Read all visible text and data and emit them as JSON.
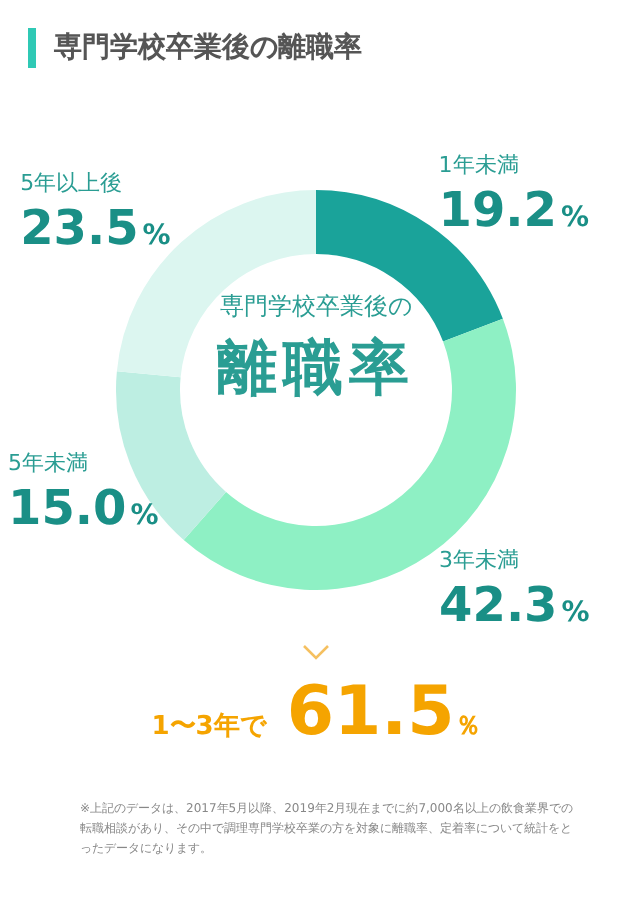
{
  "chart_data": {
    "type": "donut",
    "title": "専門学校卒業後の離職率",
    "categories": [
      "1年未満",
      "3年未満",
      "5年未満",
      "5年以上後"
    ],
    "values": [
      19.2,
      42.3,
      15.0,
      23.5
    ],
    "colors": [
      "#1aa39a",
      "#8ef0c4",
      "#bdeee2",
      "#dcf6f0"
    ],
    "value_labels": [
      "19.2%",
      "42.3%",
      "15.0%",
      "23.5%"
    ],
    "legend": false,
    "annotations": [
      "専門学校卒業後の",
      "離職率",
      "1〜3年で 61.5％",
      "※上記のデータは、2017年5月以降、2019年2月現在までに約7,000名以上の飲食業界での転職相談があり、その中で調理専門学校卒業の方を対象に離職率、定着率について統計をとったデータになります。"
    ]
  }
}
